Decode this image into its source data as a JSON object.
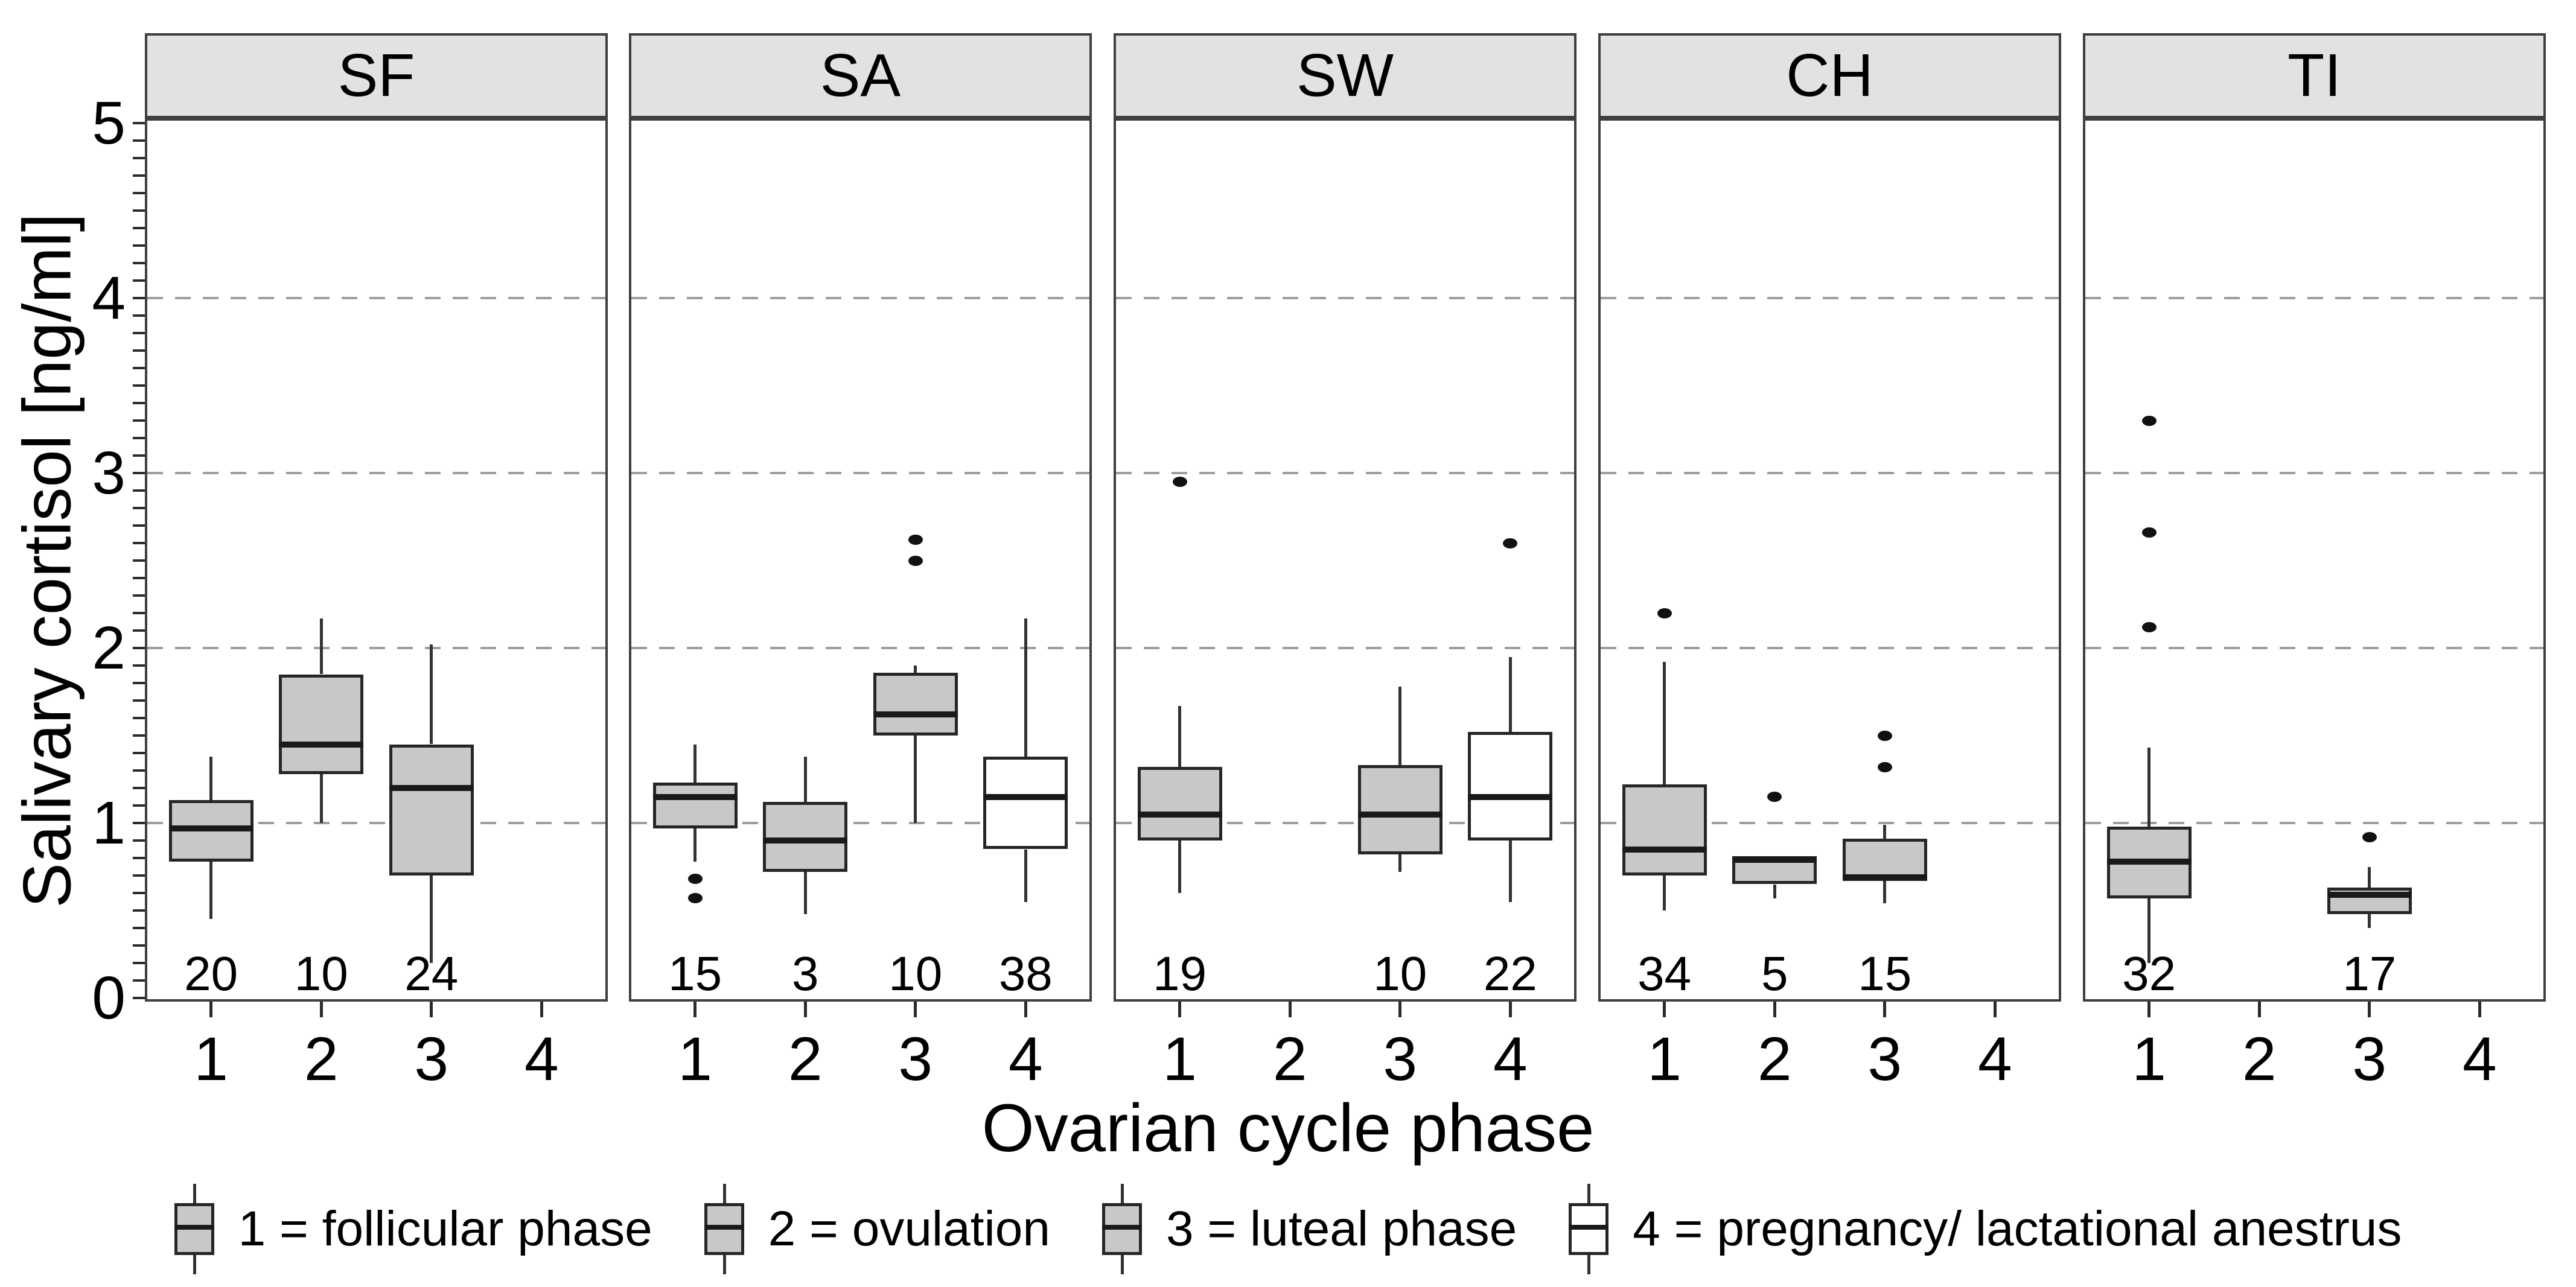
{
  "y_axis": {
    "title": "Salivary cortisol [ng/ml]",
    "tick_labels": [
      "0",
      "1",
      "2",
      "3",
      "4",
      "5"
    ],
    "range": [
      0,
      5
    ],
    "minor_tick_step": 0.1,
    "dashed_gridlines_at": [
      1,
      2,
      3,
      4
    ]
  },
  "x_axis": {
    "title": "Ovarian cycle phase",
    "categories": [
      "1",
      "2",
      "3",
      "4"
    ]
  },
  "legend": {
    "items": [
      {
        "label": "1 = follicular phase",
        "fill": "gray"
      },
      {
        "label": "2 = ovulation",
        "fill": "gray"
      },
      {
        "label": "3 = luteal phase",
        "fill": "gray"
      },
      {
        "label": "4 = pregnancy/ lactational anestrus",
        "fill": "white"
      }
    ]
  },
  "colors": {
    "box_gray": "#c8c8c8",
    "box_white": "#ffffff",
    "box_border": "#262626",
    "whisker": "#333333",
    "median": "#1a1a1a",
    "gridline": "#9e9e9e",
    "panel_border": "#3f3f3f",
    "strip_fill": "#e2e2e2",
    "outlier": "#111111",
    "text": "#000000"
  },
  "chart_data": {
    "type": "boxplot-faceted",
    "title": "",
    "ylabel": "Salivary cortisol [ng/ml]",
    "xlabel": "Ovarian cycle phase",
    "ylim": [
      0,
      5
    ],
    "grid": "dashed horizontal at 1,2,3,4",
    "legend_position": "bottom",
    "facets": [
      {
        "label": "SF",
        "boxes": [
          {
            "phase": "1",
            "n": "20",
            "fill": "gray",
            "low": 0.45,
            "q1": 0.78,
            "median": 0.97,
            "q3": 1.13,
            "high": 1.38,
            "outliers": []
          },
          {
            "phase": "2",
            "n": "10",
            "fill": "gray",
            "low": 1.0,
            "q1": 1.28,
            "median": 1.45,
            "q3": 1.85,
            "high": 2.17,
            "outliers": []
          },
          {
            "phase": "3",
            "n": "24",
            "fill": "gray",
            "low": 0.2,
            "q1": 0.7,
            "median": 1.2,
            "q3": 1.45,
            "high": 2.02,
            "outliers": []
          }
        ]
      },
      {
        "label": "SA",
        "boxes": [
          {
            "phase": "1",
            "n": "15",
            "fill": "gray",
            "low": 0.78,
            "q1": 0.97,
            "median": 1.15,
            "q3": 1.23,
            "high": 1.45,
            "outliers": [
              0.68,
              0.57
            ]
          },
          {
            "phase": "2",
            "n": "3",
            "fill": "gray",
            "low": 0.48,
            "q1": 0.72,
            "median": 0.9,
            "q3": 1.12,
            "high": 1.38,
            "outliers": []
          },
          {
            "phase": "3",
            "n": "10",
            "fill": "gray",
            "low": 1.0,
            "q1": 1.5,
            "median": 1.62,
            "q3": 1.86,
            "high": 1.9,
            "outliers": [
              2.62,
              2.5
            ]
          },
          {
            "phase": "4",
            "n": "38",
            "fill": "white",
            "low": 0.55,
            "q1": 0.85,
            "median": 1.15,
            "q3": 1.38,
            "high": 2.17,
            "outliers": []
          }
        ]
      },
      {
        "label": "SW",
        "boxes": [
          {
            "phase": "1",
            "n": "19",
            "fill": "gray",
            "low": 0.6,
            "q1": 0.9,
            "median": 1.05,
            "q3": 1.32,
            "high": 1.67,
            "outliers": [
              2.95
            ]
          },
          {
            "phase": "3",
            "n": "10",
            "fill": "gray",
            "low": 0.72,
            "q1": 0.82,
            "median": 1.05,
            "q3": 1.33,
            "high": 1.78,
            "outliers": []
          },
          {
            "phase": "4",
            "n": "22",
            "fill": "white",
            "low": 0.55,
            "q1": 0.9,
            "median": 1.15,
            "q3": 1.52,
            "high": 1.95,
            "outliers": [
              2.6
            ]
          }
        ]
      },
      {
        "label": "CH",
        "boxes": [
          {
            "phase": "1",
            "n": "34",
            "fill": "gray",
            "low": 0.5,
            "q1": 0.7,
            "median": 0.85,
            "q3": 1.22,
            "high": 1.92,
            "outliers": [
              2.2
            ]
          },
          {
            "phase": "2",
            "n": "5",
            "fill": "gray",
            "low": 0.57,
            "q1": 0.65,
            "median": 0.79,
            "q3": 0.81,
            "high": 0.81,
            "outliers": [
              1.15
            ]
          },
          {
            "phase": "3",
            "n": "15",
            "fill": "gray",
            "low": 0.54,
            "q1": 0.67,
            "median": 0.69,
            "q3": 0.91,
            "high": 0.99,
            "outliers": [
              1.5,
              1.32
            ]
          }
        ]
      },
      {
        "label": "TI",
        "boxes": [
          {
            "phase": "1",
            "n": "32",
            "fill": "gray",
            "low": 0.2,
            "q1": 0.57,
            "median": 0.78,
            "q3": 0.98,
            "high": 1.43,
            "outliers": [
              3.3,
              2.66,
              2.12
            ]
          },
          {
            "phase": "3",
            "n": "17",
            "fill": "gray",
            "low": 0.4,
            "q1": 0.48,
            "median": 0.59,
            "q3": 0.63,
            "high": 0.75,
            "outliers": [
              0.92
            ]
          }
        ]
      }
    ]
  }
}
